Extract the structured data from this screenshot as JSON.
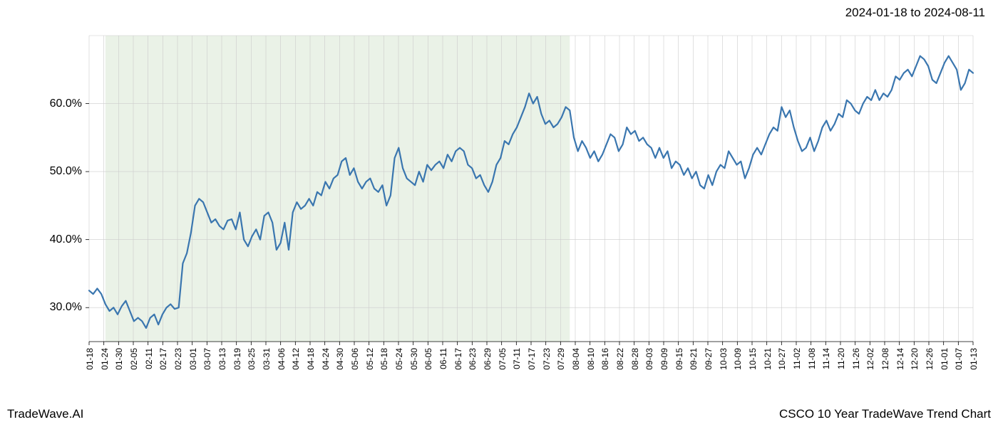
{
  "header": {
    "date_range": "2024-01-18 to 2024-08-11"
  },
  "footer": {
    "brand": "TradeWave.AI",
    "chart_title": "CSCO 10 Year TradeWave Trend Chart"
  },
  "chart": {
    "type": "line",
    "background_color": "#ffffff",
    "line_color": "#3a76af",
    "line_width": 2.2,
    "grid_color": "#cccccc",
    "grid_width": 0.6,
    "highlight_region": {
      "fill": "#d9e8d4",
      "opacity": 0.55,
      "x_start_index": 4,
      "x_end_index": 118
    },
    "y_axis": {
      "min": 25,
      "max": 70,
      "ticks": [
        30,
        40,
        50,
        60
      ],
      "tick_labels": [
        "30.0%",
        "40.0%",
        "50.0%",
        "60.0%"
      ],
      "label_fontsize": 16,
      "label_color": "#000000"
    },
    "x_axis": {
      "labels": [
        "01-18",
        "01-24",
        "01-30",
        "02-05",
        "02-11",
        "02-17",
        "02-23",
        "03-01",
        "03-07",
        "03-13",
        "03-19",
        "03-25",
        "03-31",
        "04-06",
        "04-12",
        "04-18",
        "04-24",
        "04-30",
        "05-06",
        "05-12",
        "05-18",
        "05-24",
        "05-30",
        "06-05",
        "06-11",
        "06-17",
        "06-23",
        "06-29",
        "07-05",
        "07-11",
        "07-17",
        "07-23",
        "07-29",
        "08-04",
        "08-10",
        "08-16",
        "08-22",
        "08-28",
        "09-03",
        "09-09",
        "09-15",
        "09-21",
        "09-27",
        "10-03",
        "10-09",
        "10-15",
        "10-21",
        "10-27",
        "11-02",
        "11-08",
        "11-14",
        "11-20",
        "11-26",
        "12-02",
        "12-08",
        "12-14",
        "12-20",
        "12-26",
        "01-01",
        "01-07",
        "01-13"
      ],
      "label_fontsize": 12,
      "label_color": "#000000",
      "rotation": 90
    },
    "series": {
      "values": [
        32.5,
        32.0,
        32.8,
        32.0,
        30.5,
        29.5,
        30.0,
        29.0,
        30.2,
        31.0,
        29.5,
        28.0,
        28.5,
        28.0,
        27.0,
        28.5,
        29.0,
        27.5,
        29.0,
        30.0,
        30.5,
        29.8,
        30.0,
        36.5,
        38.0,
        41.0,
        45.0,
        46.0,
        45.5,
        44.0,
        42.5,
        43.0,
        42.0,
        41.5,
        42.8,
        43.0,
        41.5,
        44.0,
        40.0,
        39.0,
        40.5,
        41.5,
        40.0,
        43.5,
        44.0,
        42.5,
        38.5,
        39.5,
        42.5,
        38.5,
        44.0,
        45.5,
        44.5,
        45.0,
        46.0,
        45.0,
        47.0,
        46.5,
        48.5,
        47.5,
        49.0,
        49.5,
        51.5,
        52.0,
        49.5,
        50.5,
        48.5,
        47.5,
        48.5,
        49.0,
        47.5,
        47.0,
        48.0,
        45.0,
        46.5,
        52.0,
        53.5,
        50.5,
        49.0,
        48.5,
        48.0,
        50.0,
        48.5,
        51.0,
        50.2,
        51.0,
        51.5,
        50.5,
        52.5,
        51.5,
        53.0,
        53.5,
        53.0,
        51.0,
        50.5,
        49.0,
        49.5,
        48.0,
        47.0,
        48.5,
        51.0,
        52.0,
        54.5,
        54.0,
        55.5,
        56.5,
        58.0,
        59.5,
        61.5,
        60.0,
        61.0,
        58.5,
        57.0,
        57.5,
        56.5,
        57.0,
        58.0,
        59.5,
        59.0,
        55.0,
        53.0,
        54.5,
        53.5,
        52.0,
        53.0,
        51.5,
        52.5,
        54.0,
        55.5,
        55.0,
        53.0,
        54.0,
        56.5,
        55.5,
        56.0,
        54.5,
        55.0,
        54.0,
        53.5,
        52.0,
        53.5,
        52.0,
        53.0,
        50.5,
        51.5,
        51.0,
        49.5,
        50.5,
        49.0,
        50.0,
        48.0,
        47.5,
        49.5,
        48.0,
        50.0,
        51.0,
        50.5,
        53.0,
        52.0,
        51.0,
        51.5,
        49.0,
        50.5,
        52.5,
        53.5,
        52.5,
        54.0,
        55.5,
        56.5,
        56.0,
        59.5,
        58.0,
        59.0,
        56.5,
        54.5,
        53.0,
        53.5,
        55.0,
        53.0,
        54.5,
        56.5,
        57.5,
        56.0,
        57.0,
        58.5,
        58.0,
        60.5,
        60.0,
        59.0,
        58.5,
        60.0,
        61.0,
        60.5,
        62.0,
        60.5,
        61.5,
        61.0,
        62.0,
        64.0,
        63.5,
        64.5,
        65.0,
        64.0,
        65.5,
        67.0,
        66.5,
        65.5,
        63.5,
        63.0,
        64.5,
        66.0,
        67.0,
        66.0,
        65.0,
        62.0,
        63.0,
        65.0,
        64.5
      ]
    }
  }
}
